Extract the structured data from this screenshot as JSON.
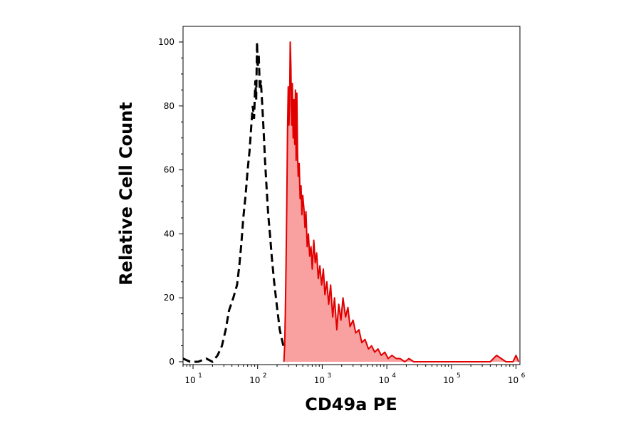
{
  "chart_data": {
    "type": "area",
    "xlabel": "CD49a PE",
    "ylabel": "Relative Cell Count",
    "x_scale": "log",
    "xlim": [
      7,
      1150000
    ],
    "ylim": [
      0,
      100
    ],
    "x_ticks": [
      {
        "value": 10,
        "base": "10",
        "exp": "1"
      },
      {
        "value": 100,
        "base": "10",
        "exp": "2"
      },
      {
        "value": 1000,
        "base": "10",
        "exp": "3"
      },
      {
        "value": 10000,
        "base": "10",
        "exp": "4"
      },
      {
        "value": 100000,
        "base": "10",
        "exp": "5"
      },
      {
        "value": 1000000,
        "base": "10",
        "exp": "6"
      }
    ],
    "y_ticks": [
      {
        "value": 0,
        "label": "0"
      },
      {
        "value": 20,
        "label": "20"
      },
      {
        "value": 40,
        "label": "40"
      },
      {
        "value": 60,
        "label": "60"
      },
      {
        "value": 80,
        "label": "80"
      },
      {
        "value": 100,
        "label": "100"
      }
    ],
    "series": [
      {
        "style": "dashed-line",
        "color": "#000000",
        "x": [
          7,
          9,
          12,
          16,
          20,
          24,
          28,
          32,
          36,
          42,
          48,
          52,
          56,
          60,
          65,
          70,
          75,
          80,
          84,
          88,
          92,
          95,
          98,
          100,
          104,
          108,
          112,
          118,
          124,
          130,
          138,
          146,
          155,
          165,
          180,
          200,
          220,
          250,
          280,
          300
        ],
        "y": [
          1,
          0,
          0,
          1,
          0,
          2,
          5,
          10,
          16,
          20,
          24,
          30,
          37,
          45,
          52,
          60,
          66,
          74,
          80,
          76,
          88,
          82,
          100,
          92,
          96,
          85,
          88,
          80,
          72,
          63,
          54,
          46,
          40,
          33,
          25,
          17,
          10,
          5,
          2,
          0
        ]
      },
      {
        "style": "filled",
        "color": "#e00000",
        "fill": "#f9a0a0",
        "x": [
          255,
          262,
          268,
          275,
          282,
          290,
          298,
          305,
          312,
          320,
          328,
          336,
          345,
          355,
          365,
          375,
          385,
          395,
          405,
          415,
          425,
          440,
          455,
          470,
          485,
          500,
          520,
          540,
          560,
          585,
          610,
          640,
          670,
          700,
          740,
          780,
          820,
          870,
          920,
          980,
          1040,
          1100,
          1180,
          1260,
          1350,
          1450,
          1550,
          1680,
          1800,
          1950,
          2100,
          2300,
          2500,
          2700,
          3000,
          3300,
          3700,
          4100,
          4600,
          5200,
          5800,
          6500,
          7300,
          8200,
          9300,
          10500,
          12000,
          14000,
          16000,
          19000,
          22000,
          26000,
          32000,
          40000,
          55000,
          80000,
          120000,
          200000,
          300000,
          350000,
          400000,
          500000,
          700000,
          900000,
          1000000,
          1100000
        ],
        "y": [
          0,
          5,
          15,
          30,
          48,
          72,
          86,
          74,
          80,
          100,
          92,
          74,
          87,
          70,
          82,
          68,
          85,
          63,
          84,
          65,
          58,
          62,
          51,
          55,
          46,
          52,
          48,
          42,
          47,
          36,
          40,
          33,
          36,
          29,
          38,
          31,
          34,
          26,
          30,
          24,
          29,
          21,
          25,
          18,
          24,
          14,
          20,
          10,
          18,
          13,
          20,
          14,
          17,
          11,
          13,
          9,
          10,
          6,
          7,
          4,
          5,
          3,
          4,
          2,
          3,
          1,
          2,
          1,
          1,
          0,
          1,
          0,
          0,
          0,
          0,
          0,
          0,
          0,
          0,
          0,
          0,
          2,
          0,
          0,
          2,
          0
        ]
      }
    ]
  }
}
